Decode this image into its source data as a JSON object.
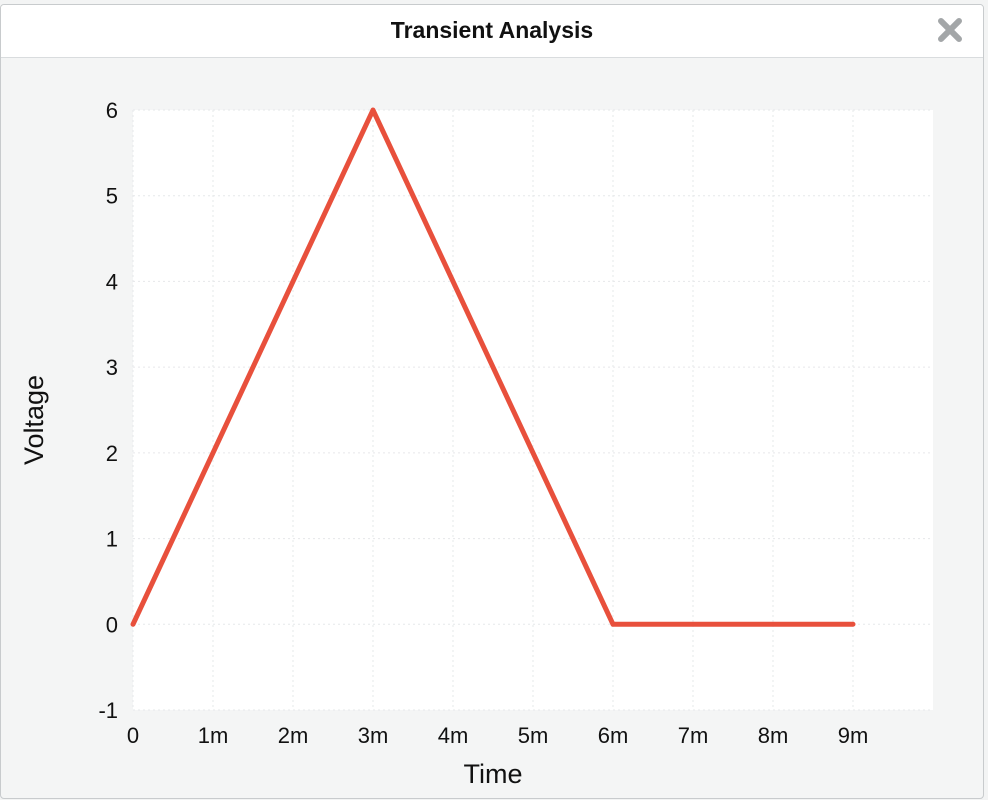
{
  "window": {
    "title": "Transient Analysis",
    "close_icon": "close-icon"
  },
  "colors": {
    "series": "#e8503c",
    "plot_bg": "#ffffff",
    "panel_bg": "#f4f5f5"
  },
  "chart_data": {
    "type": "line",
    "xlabel": "Time",
    "ylabel": "Voltage",
    "xlim": [
      0,
      0.01
    ],
    "ylim": [
      -1,
      6
    ],
    "xticks": [
      {
        "value": 0,
        "label": "0"
      },
      {
        "value": 0.001,
        "label": "1m"
      },
      {
        "value": 0.002,
        "label": "2m"
      },
      {
        "value": 0.003,
        "label": "3m"
      },
      {
        "value": 0.004,
        "label": "4m"
      },
      {
        "value": 0.005,
        "label": "5m"
      },
      {
        "value": 0.006,
        "label": "6m"
      },
      {
        "value": 0.007,
        "label": "7m"
      },
      {
        "value": 0.008,
        "label": "8m"
      },
      {
        "value": 0.009,
        "label": "9m"
      }
    ],
    "yticks": [
      {
        "value": -1,
        "label": "-1"
      },
      {
        "value": 0,
        "label": "0"
      },
      {
        "value": 1,
        "label": "1"
      },
      {
        "value": 2,
        "label": "2"
      },
      {
        "value": 3,
        "label": "3"
      },
      {
        "value": 4,
        "label": "4"
      },
      {
        "value": 5,
        "label": "5"
      },
      {
        "value": 6,
        "label": "6"
      }
    ],
    "grid": true,
    "series": [
      {
        "x": [
          0,
          0.003,
          0.006,
          0.009
        ],
        "y": [
          0,
          6,
          0,
          0
        ]
      }
    ]
  }
}
